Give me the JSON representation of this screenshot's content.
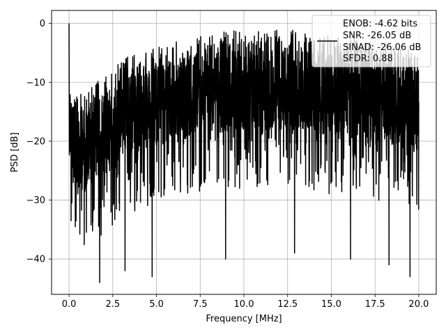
{
  "chart_data": {
    "type": "line",
    "xlabel": "Frequency [MHz]",
    "ylabel": "PSD [dB]",
    "xlim": [
      -1.0,
      21.0
    ],
    "ylim": [
      -46.0,
      2.2
    ],
    "xticks": [
      0.0,
      2.5,
      5.0,
      7.5,
      10.0,
      12.5,
      15.0,
      17.5,
      20.0
    ],
    "xtick_labels": [
      "0.0",
      "2.5",
      "5.0",
      "7.5",
      "10.0",
      "12.5",
      "15.0",
      "17.5",
      "20.0"
    ],
    "yticks": [
      0,
      -10,
      -20,
      -30,
      -40
    ],
    "ytick_labels": [
      "0",
      "−10",
      "−20",
      "−30",
      "−40"
    ],
    "grid": true,
    "line_color": "#000000",
    "series": [
      {
        "name": "ENOB: -4.62 bits\nSNR: -26.05 dB\nSINAD: -26.06 dB\nSFDR: 0.88",
        "x_range": [
          0.0,
          20.0
        ],
        "peak": {
          "x": 0.0,
          "y": 0.0
        },
        "upper_envelope": [
          [
            0.0,
            -5
          ],
          [
            0.25,
            -11
          ],
          [
            0.5,
            -12
          ],
          [
            1.0,
            -11
          ],
          [
            2.0,
            -9
          ],
          [
            3.0,
            -6
          ],
          [
            5.0,
            -4
          ],
          [
            7.5,
            -2
          ],
          [
            10.0,
            -1
          ],
          [
            12.5,
            -1
          ],
          [
            15.0,
            -2
          ],
          [
            17.5,
            -3
          ],
          [
            20.0,
            -5
          ]
        ],
        "typical_range": [
          -25,
          -5
        ],
        "minima": [
          [
            1.75,
            -44
          ],
          [
            3.2,
            -42
          ],
          [
            4.75,
            -43
          ],
          [
            8.95,
            -40
          ],
          [
            12.9,
            -39
          ],
          [
            16.1,
            -40
          ],
          [
            18.3,
            -41
          ],
          [
            19.5,
            -43
          ]
        ]
      }
    ],
    "legend": {
      "placement": "upper right",
      "lines": [
        "ENOB: -4.62 bits",
        "SNR: -26.05 dB",
        "SINAD: -26.06 dB",
        "SFDR: 0.88"
      ]
    }
  }
}
